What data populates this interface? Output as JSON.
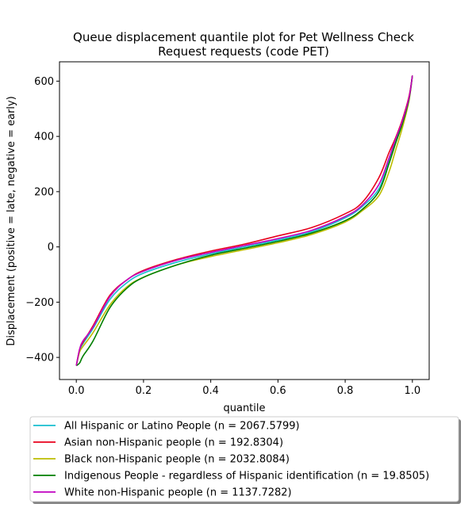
{
  "chart_data": {
    "type": "line",
    "title_lines": [
      "Queue displacement quantile plot for Pet Wellness Check",
      "Request  requests (code PET)"
    ],
    "xlabel": "quantile",
    "ylabel": "Displacement (positive = late, negative = early)",
    "xlim": [
      -0.05,
      1.05
    ],
    "ylim": [
      -480,
      670
    ],
    "xticks": [
      0.0,
      0.2,
      0.4,
      0.6,
      0.8,
      1.0
    ],
    "xtick_labels": [
      "0.0",
      "0.2",
      "0.4",
      "0.6",
      "0.8",
      "1.0"
    ],
    "yticks": [
      -400,
      -200,
      0,
      200,
      400,
      600
    ],
    "ytick_labels": [
      "−400",
      "−200",
      "0",
      "200",
      "400",
      "600"
    ],
    "grid": false,
    "legend_position": "below",
    "x": [
      0.0,
      0.01,
      0.02,
      0.05,
      0.1,
      0.15,
      0.2,
      0.3,
      0.4,
      0.5,
      0.6,
      0.7,
      0.8,
      0.85,
      0.9,
      0.93,
      0.95,
      0.97,
      0.99,
      1.0
    ],
    "series": [
      {
        "name": "All Hispanic or Latino People (n = 2067.5799)",
        "color": "#17becf",
        "values": [
          -430,
          -375,
          -350,
          -295,
          -190,
          -130,
          -95,
          -55,
          -25,
          0,
          25,
          55,
          105,
          145,
          210,
          310,
          380,
          450,
          540,
          620
        ]
      },
      {
        "name": "Asian non-Hispanic people (n = 192.8304)",
        "color": "#e8001c",
        "values": [
          -430,
          -370,
          -345,
          -285,
          -175,
          -120,
          -85,
          -45,
          -15,
          10,
          40,
          70,
          120,
          160,
          250,
          340,
          395,
          460,
          545,
          620
        ]
      },
      {
        "name": "Black non-Hispanic people (n = 2032.8084)",
        "color": "#bcbd00",
        "values": [
          -430,
          -380,
          -360,
          -310,
          -210,
          -145,
          -110,
          -65,
          -35,
          -10,
          15,
          45,
          90,
          130,
          185,
          270,
          350,
          430,
          530,
          620
        ]
      },
      {
        "name": "Indigenous People - regardless of Hispanic identification (n = 19.8505)",
        "color": "#007f00",
        "values": [
          -430,
          -420,
          -395,
          -340,
          -220,
          -150,
          -110,
          -65,
          -30,
          -5,
          20,
          50,
          95,
          135,
          200,
          300,
          375,
          445,
          535,
          620
        ]
      },
      {
        "name": "White non-Hispanic people (n = 1137.7282)",
        "color": "#c000c0",
        "values": [
          -430,
          -370,
          -340,
          -290,
          -180,
          -120,
          -88,
          -48,
          -20,
          5,
          30,
          60,
          110,
          150,
          225,
          320,
          390,
          455,
          540,
          620
        ]
      }
    ]
  }
}
